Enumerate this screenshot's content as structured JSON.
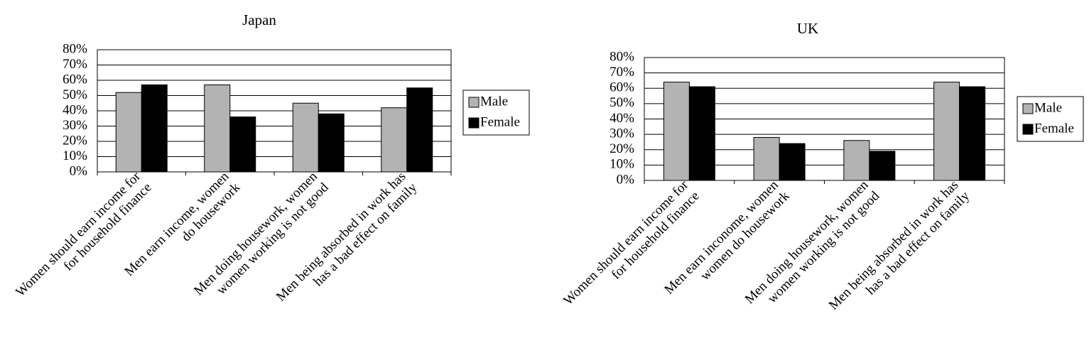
{
  "chart_data": [
    {
      "type": "bar",
      "title": "Japan",
      "categories": [
        "Women should earn income for\nfor household finance",
        "Men earn income, women\ndo housework",
        "Men doing housework, women\nwomen working is not good",
        "Men being absorbed in work has\nhas a bad effect on family"
      ],
      "series": [
        {
          "name": "Male",
          "color": "#b3b3b3",
          "values": [
            52,
            57,
            45,
            42
          ]
        },
        {
          "name": "Female",
          "color": "#000000",
          "values": [
            57,
            36,
            38,
            55
          ]
        }
      ],
      "ylim": [
        0,
        80
      ],
      "yticks": [
        {
          "value": 0,
          "label": "0%"
        },
        {
          "value": 10,
          "label": "10%"
        },
        {
          "value": 20,
          "label": "20%"
        },
        {
          "value": 30,
          "label": "30%"
        },
        {
          "value": 40,
          "label": "40%"
        },
        {
          "value": 50,
          "label": "50%"
        },
        {
          "value": 60,
          "label": "60%"
        },
        {
          "value": 70,
          "label": "70%"
        },
        {
          "value": 80,
          "label": "80%"
        }
      ],
      "grid": true,
      "legend": "right"
    },
    {
      "type": "bar",
      "title": "UK",
      "categories": [
        "Women should earn income for\nfor household finance",
        "Men earn inconome, women\nwomen do housework",
        "Men doing housework, women\nwomen working is not good",
        "Men being absorbed in work has\nhas a bad effect on family"
      ],
      "series": [
        {
          "name": "Male",
          "color": "#b3b3b3",
          "values": [
            64,
            28,
            26,
            64
          ]
        },
        {
          "name": "Female",
          "color": "#000000",
          "values": [
            61,
            24,
            19,
            61
          ]
        }
      ],
      "ylim": [
        0,
        80
      ],
      "yticks": [
        {
          "value": 0,
          "label": "0%"
        },
        {
          "value": 10,
          "label": "10%"
        },
        {
          "value": 20,
          "label": "20%"
        },
        {
          "value": 30,
          "label": "30%"
        },
        {
          "value": 40,
          "label": "40%"
        },
        {
          "value": 50,
          "label": "50%"
        },
        {
          "value": 60,
          "label": "60%"
        },
        {
          "value": 70,
          "label": "70%"
        },
        {
          "value": 80,
          "label": "80%"
        }
      ],
      "grid": true,
      "legend": "right"
    }
  ]
}
